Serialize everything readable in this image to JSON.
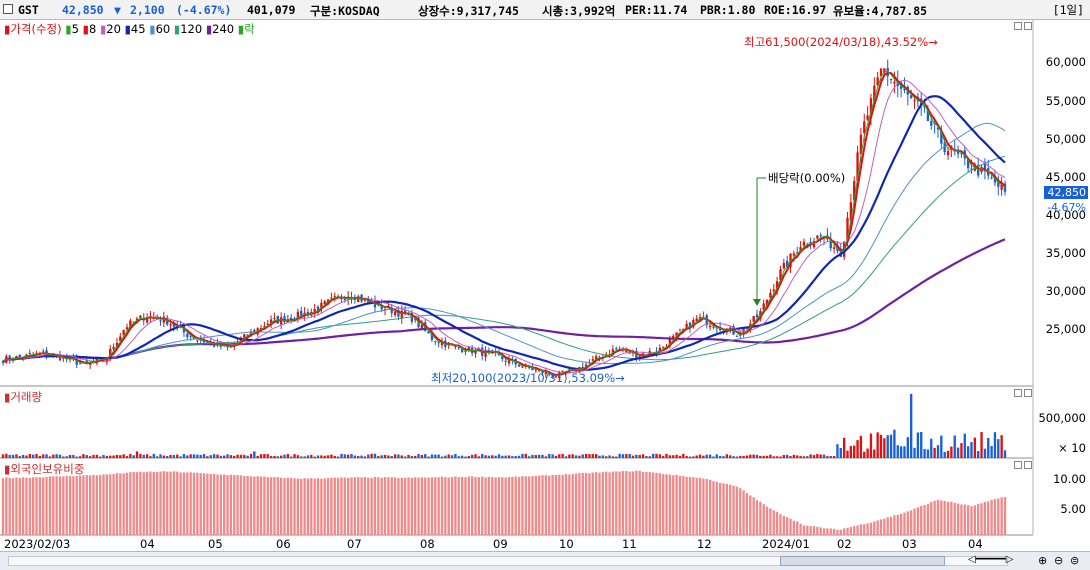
{
  "header": {
    "name": "GST",
    "price": "42,850",
    "change_arrow": "▼",
    "change": "2,100",
    "change_pct": "(-4.67%)",
    "volume": "401,079",
    "market": "구분:KOSDAQ",
    "shares": "상장수:9,317,745",
    "mktcap": "시총:3,992억",
    "per": "PER:11.74",
    "pbr": "PBR:1.80",
    "roe": "ROE:16.97",
    "float": "유보율:4,787.85",
    "period": "[1일]"
  },
  "colors": {
    "up": "#dd1111",
    "down": "#1860d8",
    "ma5": "#22aa22",
    "ma8": "#dd1111",
    "ma20": "#c060c0",
    "ma45": "#1028b0",
    "ma60": "#5090d0",
    "ma120": "#30a080",
    "ma240": "#7020a0",
    "foreign_bar": "#f08a8a"
  },
  "legend": {
    "price": {
      "label": "가격(수정)",
      "color": "#dd1111"
    },
    "items": [
      {
        "label": "5",
        "color": "#22aa22"
      },
      {
        "label": "8",
        "color": "#dd1111"
      },
      {
        "label": "20",
        "color": "#c060c0"
      },
      {
        "label": "45",
        "color": "#1028b0"
      },
      {
        "label": "60",
        "color": "#5090d0"
      },
      {
        "label": "120",
        "color": "#30a080"
      },
      {
        "label": "240",
        "color": "#7020a0"
      }
    ],
    "ex_div": {
      "label": "락",
      "color": "#22aa22"
    }
  },
  "volume_legend": "거래량",
  "foreign_legend": "외국인보유비중",
  "annotations": {
    "high": "최고61,500(2024/03/18),43.52%→",
    "low": "최저20,100(2023/10/31),53.09%→",
    "exdiv": "배당락(0.00%)"
  },
  "price_axis": {
    "ticks": [
      "60,000",
      "55,000",
      "50,000",
      "45,000",
      "40,000",
      "35,000",
      "30,000",
      "25,000"
    ],
    "current_label": "42,850",
    "current_pct": "-4.67%"
  },
  "volume_axis": {
    "ticks": [
      "500,000",
      "× 10"
    ]
  },
  "foreign_axis": {
    "ticks": [
      "10.00",
      "5.00"
    ]
  },
  "x_axis": {
    "labels": [
      "2023/02/03",
      "04",
      "05",
      "06",
      "07",
      "08",
      "09",
      "10",
      "11",
      "12",
      "2024/01",
      "02",
      "03",
      "04"
    ]
  },
  "chart_data": [
    {
      "type": "candlestick",
      "title": "GST daily price (adjusted)",
      "ylim": [
        19000,
        63500
      ],
      "dates_start": "2023/02/03",
      "dates_end": "2024/04",
      "close_anchors": [
        22500,
        22800,
        23200,
        22600,
        21800,
        22500,
        26500,
        27800,
        27200,
        25500,
        24500,
        23800,
        25500,
        27000,
        27500,
        28200,
        29500,
        30500,
        29200,
        28500,
        27500,
        25000,
        24000,
        23500,
        23000,
        22000,
        21200,
        20500,
        21200,
        22500,
        23800,
        23000,
        23500,
        25500,
        27500,
        26500,
        25500,
        28000,
        33000,
        36500,
        37500,
        35500,
        50000,
        58000,
        55000,
        52500,
        48500,
        46500,
        45000,
        42850
      ],
      "high": 61500,
      "high_date": "2024/03/18",
      "low": 20100,
      "low_date": "2023/10/31",
      "last_close": 42850
    },
    {
      "type": "bar",
      "title": "거래량",
      "ylim": [
        0,
        700000
      ],
      "tick": 500000
    },
    {
      "type": "bar",
      "title": "외국인보유비중",
      "ylim": [
        0,
        12
      ],
      "ticks": [
        10.0,
        5.0
      ],
      "values_anchor": [
        8.9,
        9.0,
        9.2,
        9.4,
        9.8,
        9.9,
        9.6,
        9.3,
        9.0,
        8.8,
        8.9,
        9.0,
        8.9,
        9.0,
        9.1,
        9.0,
        9.2,
        9.5,
        9.8,
        10.0,
        9.4,
        8.8,
        7.5,
        4.0,
        1.5,
        0.8,
        2.0,
        3.5,
        5.5,
        4.5,
        6.0
      ]
    }
  ]
}
